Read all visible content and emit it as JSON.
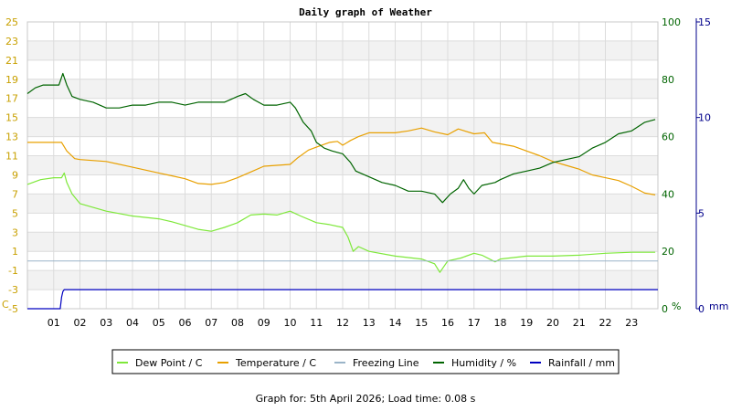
{
  "chart_data": {
    "type": "line",
    "title": "Daily graph of Weather",
    "x": {
      "unit": "hour",
      "range": [
        0,
        24
      ],
      "tick_labels": [
        "01",
        "02",
        "03",
        "04",
        "05",
        "06",
        "07",
        "08",
        "09",
        "10",
        "11",
        "12",
        "13",
        "14",
        "15",
        "16",
        "17",
        "18",
        "19",
        "20",
        "21",
        "22",
        "23"
      ]
    },
    "y_left": {
      "unit_label": "C",
      "range": [
        -5,
        25
      ],
      "tick_labels": [
        "-5",
        "-3",
        "-1",
        "1",
        "3",
        "5",
        "7",
        "9",
        "11",
        "13",
        "15",
        "17",
        "19",
        "21",
        "23",
        "25"
      ],
      "color": "#c8a000"
    },
    "y_humidity": {
      "unit_label": "%",
      "range": [
        0,
        100
      ],
      "tick_labels": [
        "0",
        "20",
        "40",
        "60",
        "80",
        "100"
      ],
      "color": "#006400"
    },
    "y_rain": {
      "unit_label": "mm",
      "range": [
        0,
        15
      ],
      "tick_labels": [
        "0",
        "5",
        "10",
        "15"
      ],
      "color": "#00008b"
    },
    "grid": true,
    "legend_position": "bottom",
    "series": [
      {
        "name": "Dew Point / C",
        "axis": "left",
        "color": "#7ee83a",
        "points": [
          [
            0,
            8.0
          ],
          [
            0.5,
            8.5
          ],
          [
            1.0,
            8.7
          ],
          [
            1.3,
            8.7
          ],
          [
            1.4,
            9.2
          ],
          [
            1.5,
            8.2
          ],
          [
            1.7,
            7.0
          ],
          [
            2.0,
            6.0
          ],
          [
            2.5,
            5.6
          ],
          [
            3.0,
            5.2
          ],
          [
            4.0,
            4.7
          ],
          [
            5.0,
            4.4
          ],
          [
            5.5,
            4.1
          ],
          [
            6.0,
            3.7
          ],
          [
            6.5,
            3.3
          ],
          [
            7.0,
            3.1
          ],
          [
            7.5,
            3.5
          ],
          [
            8.0,
            4.0
          ],
          [
            8.5,
            4.8
          ],
          [
            9.0,
            4.9
          ],
          [
            9.5,
            4.8
          ],
          [
            10.0,
            5.2
          ],
          [
            10.4,
            4.7
          ],
          [
            11.0,
            4.0
          ],
          [
            11.5,
            3.8
          ],
          [
            12.0,
            3.5
          ],
          [
            12.2,
            2.5
          ],
          [
            12.4,
            1.0
          ],
          [
            12.6,
            1.5
          ],
          [
            13.0,
            1.0
          ],
          [
            14.0,
            0.5
          ],
          [
            15.0,
            0.2
          ],
          [
            15.5,
            -0.3
          ],
          [
            15.7,
            -1.2
          ],
          [
            16.0,
            0.0
          ],
          [
            16.5,
            0.3
          ],
          [
            17.0,
            0.8
          ],
          [
            17.3,
            0.6
          ],
          [
            17.8,
            -0.1
          ],
          [
            18.0,
            0.2
          ],
          [
            19.0,
            0.5
          ],
          [
            20.0,
            0.5
          ],
          [
            21.0,
            0.6
          ],
          [
            22.0,
            0.8
          ],
          [
            23.0,
            0.9
          ],
          [
            23.9,
            0.9
          ]
        ]
      },
      {
        "name": "Temperature / C",
        "axis": "left",
        "color": "#e8a000",
        "points": [
          [
            0,
            12.4
          ],
          [
            0.5,
            12.4
          ],
          [
            1.0,
            12.4
          ],
          [
            1.3,
            12.4
          ],
          [
            1.5,
            11.5
          ],
          [
            1.8,
            10.7
          ],
          [
            2.0,
            10.6
          ],
          [
            3.0,
            10.4
          ],
          [
            4.0,
            9.8
          ],
          [
            5.0,
            9.2
          ],
          [
            5.5,
            8.9
          ],
          [
            6.0,
            8.6
          ],
          [
            6.5,
            8.1
          ],
          [
            7.0,
            8.0
          ],
          [
            7.5,
            8.2
          ],
          [
            8.0,
            8.7
          ],
          [
            8.5,
            9.3
          ],
          [
            9.0,
            9.9
          ],
          [
            9.5,
            10.0
          ],
          [
            10.0,
            10.1
          ],
          [
            10.3,
            10.8
          ],
          [
            10.7,
            11.6
          ],
          [
            11.0,
            11.9
          ],
          [
            11.5,
            12.4
          ],
          [
            11.8,
            12.5
          ],
          [
            12.0,
            12.1
          ],
          [
            12.3,
            12.6
          ],
          [
            12.6,
            13.0
          ],
          [
            13.0,
            13.4
          ],
          [
            14.0,
            13.4
          ],
          [
            14.5,
            13.6
          ],
          [
            15.0,
            13.9
          ],
          [
            15.5,
            13.5
          ],
          [
            16.0,
            13.2
          ],
          [
            16.4,
            13.8
          ],
          [
            17.0,
            13.3
          ],
          [
            17.4,
            13.4
          ],
          [
            17.7,
            12.4
          ],
          [
            18.5,
            12.0
          ],
          [
            19.0,
            11.5
          ],
          [
            19.5,
            11.0
          ],
          [
            20.0,
            10.4
          ],
          [
            20.5,
            10.0
          ],
          [
            21.0,
            9.6
          ],
          [
            21.5,
            9.0
          ],
          [
            22.0,
            8.7
          ],
          [
            22.5,
            8.4
          ],
          [
            23.0,
            7.8
          ],
          [
            23.5,
            7.1
          ],
          [
            23.9,
            6.9
          ]
        ]
      },
      {
        "name": "Freezing Line",
        "axis": "left",
        "color": "#9ab4c8",
        "points": [
          [
            0,
            0
          ],
          [
            24,
            0
          ]
        ]
      },
      {
        "name": "Humidity / %",
        "axis": "humidity",
        "color": "#006400",
        "points": [
          [
            0,
            75
          ],
          [
            0.3,
            77
          ],
          [
            0.6,
            78
          ],
          [
            1.0,
            78
          ],
          [
            1.2,
            78
          ],
          [
            1.35,
            82
          ],
          [
            1.5,
            78
          ],
          [
            1.7,
            74
          ],
          [
            2.0,
            73
          ],
          [
            2.5,
            72
          ],
          [
            3.0,
            70
          ],
          [
            3.5,
            70
          ],
          [
            4.0,
            71
          ],
          [
            4.5,
            71
          ],
          [
            5.0,
            72
          ],
          [
            5.5,
            72
          ],
          [
            6.0,
            71
          ],
          [
            6.5,
            72
          ],
          [
            7.0,
            72
          ],
          [
            7.5,
            72
          ],
          [
            8.0,
            74
          ],
          [
            8.3,
            75
          ],
          [
            8.6,
            73
          ],
          [
            9.0,
            71
          ],
          [
            9.5,
            71
          ],
          [
            10.0,
            72
          ],
          [
            10.2,
            70
          ],
          [
            10.5,
            65
          ],
          [
            10.8,
            62
          ],
          [
            11.0,
            58
          ],
          [
            11.3,
            56
          ],
          [
            11.6,
            55
          ],
          [
            12.0,
            54
          ],
          [
            12.3,
            51
          ],
          [
            12.5,
            48
          ],
          [
            13.0,
            46
          ],
          [
            13.5,
            44
          ],
          [
            14.0,
            43
          ],
          [
            14.5,
            41
          ],
          [
            15.0,
            41
          ],
          [
            15.5,
            40
          ],
          [
            15.8,
            37
          ],
          [
            16.1,
            40
          ],
          [
            16.4,
            42
          ],
          [
            16.6,
            45
          ],
          [
            16.8,
            42
          ],
          [
            17.0,
            40
          ],
          [
            17.3,
            43
          ],
          [
            17.8,
            44
          ],
          [
            18.0,
            45
          ],
          [
            18.5,
            47
          ],
          [
            19.0,
            48
          ],
          [
            19.5,
            49
          ],
          [
            20.0,
            51
          ],
          [
            20.5,
            52
          ],
          [
            21.0,
            53
          ],
          [
            21.5,
            56
          ],
          [
            22.0,
            58
          ],
          [
            22.5,
            61
          ],
          [
            23.0,
            62
          ],
          [
            23.5,
            65
          ],
          [
            23.9,
            66
          ]
        ]
      },
      {
        "name": "Rainfall / mm",
        "axis": "rain",
        "color": "#0000c0",
        "points": [
          [
            0,
            0
          ],
          [
            1.25,
            0
          ],
          [
            1.3,
            0.6
          ],
          [
            1.35,
            0.9
          ],
          [
            1.4,
            1.0
          ],
          [
            24,
            1.0
          ]
        ]
      }
    ]
  },
  "footer": {
    "prefix": "Graph for: ",
    "date": "5th April 2026",
    "load_label": "; Load time: ",
    "load_time": "0.08 s"
  }
}
